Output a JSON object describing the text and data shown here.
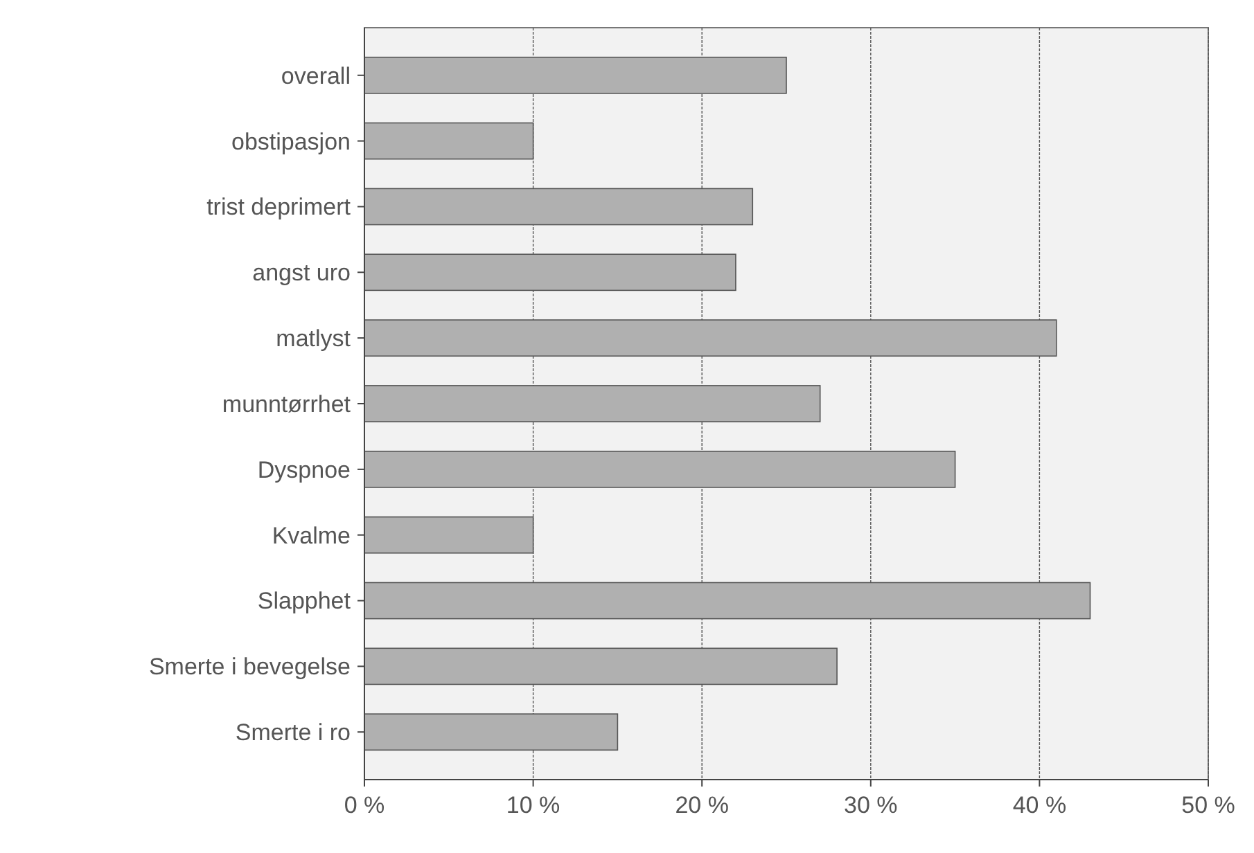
{
  "chart_data": {
    "type": "bar",
    "orientation": "horizontal",
    "categories": [
      "overall",
      "obstipasjon",
      "trist deprimert",
      "angst uro",
      "matlyst",
      "munntørrhet",
      "Dyspnoe",
      "Kvalme",
      "Slapphet",
      "Smerte i bevegelse",
      "Smerte i ro"
    ],
    "values": [
      25,
      10,
      23,
      22,
      41,
      27,
      35,
      10,
      43,
      28,
      15
    ],
    "color": "#b0b0b0",
    "xlim": [
      0,
      50
    ],
    "xticks": [
      {
        "value": 0,
        "label": "0 %"
      },
      {
        "value": 10,
        "label": "10 %"
      },
      {
        "value": 20,
        "label": "20 %"
      },
      {
        "value": 30,
        "label": "30 %"
      },
      {
        "value": 40,
        "label": "40 %"
      },
      {
        "value": 50,
        "label": "50 %"
      }
    ],
    "grid": "x"
  }
}
